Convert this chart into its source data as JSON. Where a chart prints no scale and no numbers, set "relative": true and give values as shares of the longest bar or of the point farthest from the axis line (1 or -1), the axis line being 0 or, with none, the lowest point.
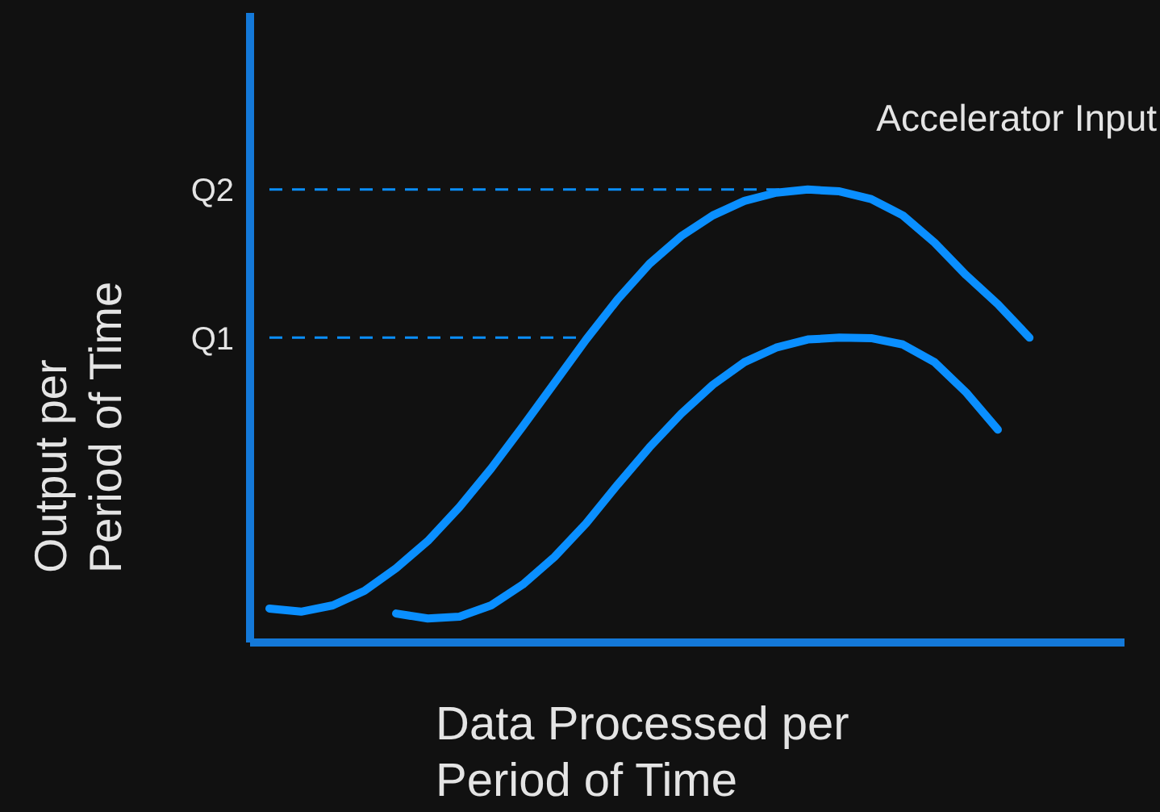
{
  "chart_data": {
    "type": "line",
    "relative": true,
    "xlabel": "Data Processed per Period of Time",
    "ylabel": "Output per Period of Time",
    "annotations": [
      "Accelerator Input"
    ],
    "categories": [
      null,
      null,
      null,
      null,
      null,
      null,
      null,
      null,
      null,
      null,
      null,
      null,
      null,
      null,
      null,
      null,
      null,
      null,
      null,
      null,
      null,
      null,
      null,
      null,
      null,
      null,
      null,
      null
    ],
    "series": [
      {
        "color": "#0a8fff",
        "values": [
          0.075,
          0.068,
          0.082,
          0.114,
          0.164,
          0.224,
          0.299,
          0.384,
          0.477,
          0.573,
          0.669,
          0.758,
          0.836,
          0.897,
          0.943,
          0.975,
          0.993,
          1,
          0.996,
          0.979,
          0.943,
          0.883,
          0.811,
          0.747,
          0.673,
          null,
          null,
          null
        ]
      },
      {
        "color": "#0a8fff",
        "values": [
          null,
          null,
          null,
          null,
          0.064,
          0.053,
          0.057,
          0.082,
          0.128,
          0.189,
          0.263,
          0.349,
          0.431,
          0.505,
          0.569,
          0.619,
          0.651,
          0.669,
          0.673,
          0.672,
          0.658,
          0.619,
          0.552,
          0.47,
          null,
          null,
          null,
          null
        ]
      }
    ],
    "ref_lines": [
      {
        "axis": "y",
        "value": 1,
        "label": "Q2",
        "color": "#0a8fff",
        "line_style": "dashed"
      },
      {
        "axis": "y",
        "value": 0.673,
        "label": "Q1",
        "color": "#0a8fff",
        "line_style": "dashed"
      }
    ],
    "grid": false,
    "legend": false
  }
}
